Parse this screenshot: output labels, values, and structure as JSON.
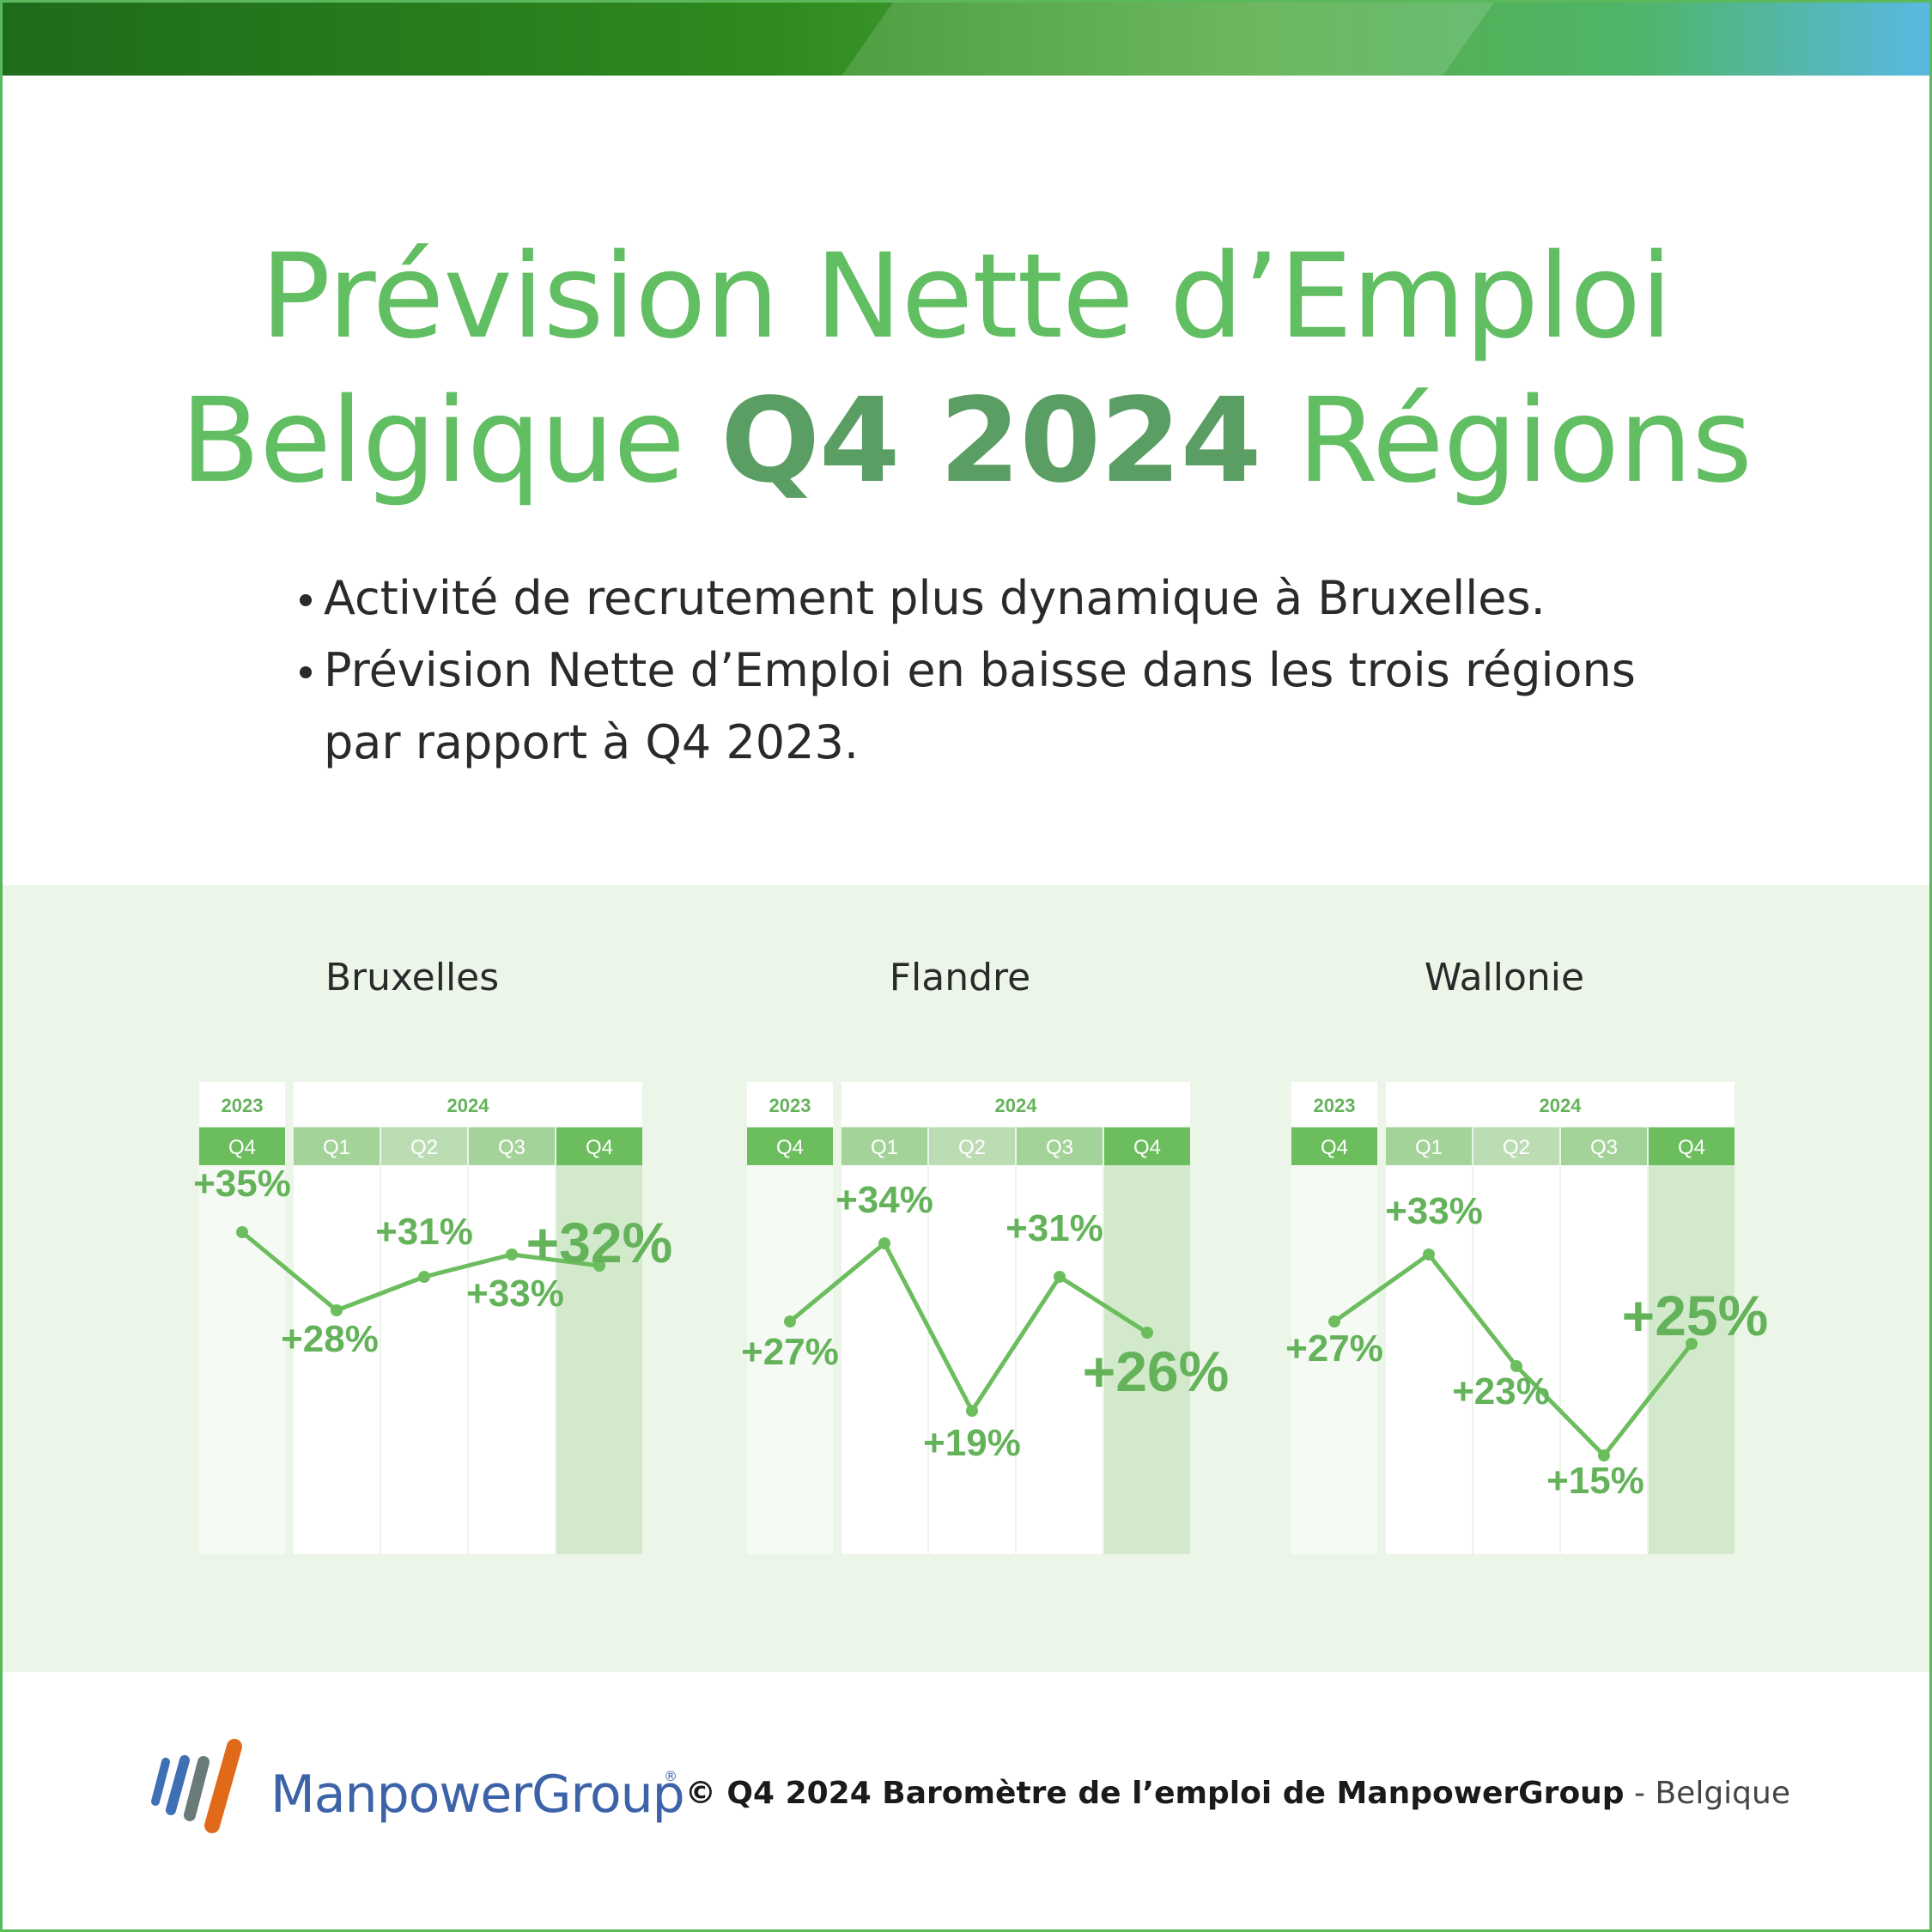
{
  "title": {
    "line1": "Prévision Nette d’Emploi",
    "line2_part1": "Belgique ",
    "line2_part2": "Q4 2024",
    "line2_part3": " Régions"
  },
  "bullets": [
    "Activité de recrutement plus dynamique à Bruxelles.",
    "Prévision Nette d’Emploi en baisse dans les trois régions par rapport à Q4 2023."
  ],
  "chart_data": [
    {
      "type": "line",
      "title": "Bruxelles",
      "year_headers": [
        "2023",
        "2024"
      ],
      "categories": [
        "Q4",
        "Q1",
        "Q2",
        "Q3",
        "Q4"
      ],
      "values": [
        35,
        28,
        31,
        33,
        32
      ],
      "labels": [
        "+35%",
        "+28%",
        "+31%",
        "+33%",
        "+32%"
      ]
    },
    {
      "type": "line",
      "title": "Flandre",
      "year_headers": [
        "2023",
        "2024"
      ],
      "categories": [
        "Q4",
        "Q1",
        "Q2",
        "Q3",
        "Q4"
      ],
      "values": [
        27,
        34,
        19,
        31,
        26
      ],
      "labels": [
        "+27%",
        "+34%",
        "+19%",
        "+31%",
        "+26%"
      ]
    },
    {
      "type": "line",
      "title": "Wallonie",
      "year_headers": [
        "2023",
        "2024"
      ],
      "categories": [
        "Q4",
        "Q1",
        "Q2",
        "Q3",
        "Q4"
      ],
      "values": [
        27,
        33,
        23,
        15,
        25
      ],
      "labels": [
        "+27%",
        "+33%",
        "+23%",
        "+15%",
        "+25%"
      ]
    }
  ],
  "colors": {
    "green_text": "#62be62",
    "line": "#6cbd5e",
    "label": "#64b35a",
    "panel_bg": "#ebf5e8"
  },
  "footer": {
    "logo_text": "ManpowerGroup",
    "logo_mark": "®",
    "copyright_bold": "© Q4 2024 Baromètre de l’emploi de ManpowerGroup",
    "copyright_sep": " - ",
    "copyright_country": "Belgique"
  }
}
